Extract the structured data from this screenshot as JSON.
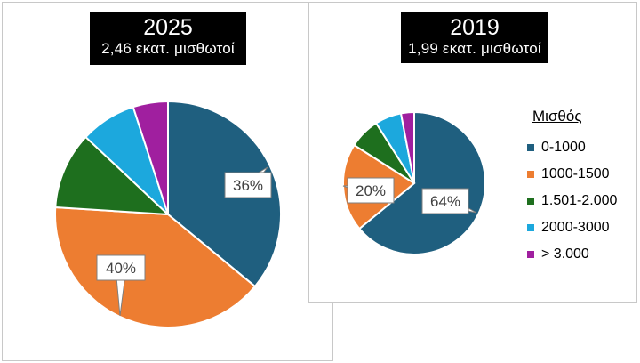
{
  "colors": {
    "0-1000": "#1f5f7f",
    "1000-1500": "#ed7d31",
    "1.501-2.000": "#1e6f1e",
    "2000-3000": "#1ca8dd",
    "> 3.000": "#a01f9f"
  },
  "chart_data": [
    {
      "type": "pie",
      "title": "2025",
      "subtitle": "2,46 εκατ. μισθωτοί",
      "categories": [
        "0-1000",
        "1000-1500",
        "1.501-2.000",
        "2000-3000",
        "> 3.000"
      ],
      "values": [
        36,
        40,
        11,
        8,
        5
      ],
      "data_labels": [
        {
          "category": "0-1000",
          "text": "36%"
        },
        {
          "category": "1000-1500",
          "text": "40%"
        }
      ]
    },
    {
      "type": "pie",
      "title": "2019",
      "subtitle": "1,99 εκατ. μισθωτοί",
      "categories": [
        "0-1000",
        "1000-1500",
        "1.501-2.000",
        "2000-3000",
        "> 3.000"
      ],
      "values": [
        64,
        20,
        7,
        6,
        3
      ],
      "data_labels": [
        {
          "category": "0-1000",
          "text": "64%"
        },
        {
          "category": "1000-1500",
          "text": "20%"
        }
      ],
      "legend": {
        "title": "Μισθός",
        "placement": "right",
        "entries": [
          "0-1000",
          "1000-1500",
          "1.501-2.000",
          "2000-3000",
          "> 3.000"
        ]
      }
    }
  ]
}
